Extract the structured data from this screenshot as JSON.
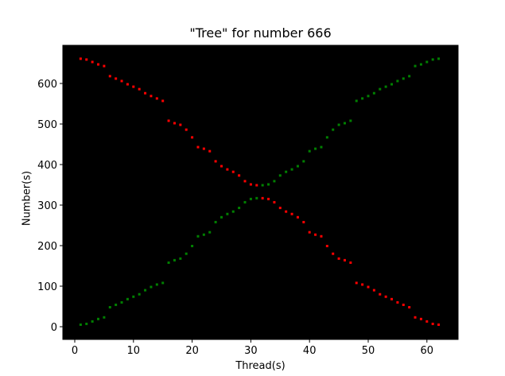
{
  "chart_data": {
    "type": "scatter",
    "title": "\"Tree\" for number 666",
    "xlabel": "Thread(s)",
    "ylabel": "Number(s)",
    "xlim": [
      -2,
      65
    ],
    "ylim": [
      -30,
      695
    ],
    "xticks": [
      0,
      10,
      20,
      30,
      40,
      50,
      60
    ],
    "yticks": [
      0,
      100,
      200,
      300,
      400,
      500,
      600
    ],
    "background": "#000000",
    "grid": false,
    "legend": null,
    "x": [
      1,
      2,
      3,
      4,
      5,
      6,
      7,
      8,
      9,
      10,
      11,
      12,
      13,
      14,
      15,
      16,
      17,
      18,
      19,
      20,
      21,
      22,
      23,
      24,
      25,
      26,
      27,
      28,
      29,
      30,
      31,
      32,
      33,
      34,
      35,
      36,
      37,
      38,
      39,
      40,
      41,
      42,
      43,
      44,
      45,
      46,
      47,
      48,
      49,
      50,
      51,
      52,
      53,
      54,
      55,
      56,
      57,
      58,
      59,
      60,
      61,
      62
    ],
    "series": [
      {
        "name": "red",
        "color": "#ff0000",
        "values": [
          661,
          659,
          653,
          647,
          643,
          618,
          612,
          606,
          598,
          592,
          586,
          576,
          569,
          563,
          557,
          508,
          502,
          498,
          486,
          467,
          443,
          439,
          433,
          408,
          396,
          388,
          382,
          373,
          359,
          351,
          349,
          317,
          315,
          307,
          293,
          284,
          278,
          270,
          258,
          233,
          227,
          223,
          199,
          180,
          168,
          164,
          158,
          108,
          104,
          98,
          90,
          80,
          74,
          68,
          60,
          54,
          48,
          23,
          19,
          13,
          7,
          5
        ]
      },
      {
        "name": "green",
        "color": "#008000",
        "values": [
          5,
          7,
          13,
          19,
          23,
          48,
          54,
          60,
          68,
          74,
          80,
          90,
          98,
          104,
          108,
          158,
          164,
          168,
          180,
          199,
          223,
          227,
          233,
          258,
          270,
          278,
          284,
          293,
          307,
          315,
          317,
          349,
          351,
          359,
          373,
          382,
          388,
          396,
          408,
          433,
          439,
          443,
          467,
          486,
          498,
          502,
          508,
          557,
          563,
          569,
          576,
          586,
          592,
          598,
          606,
          612,
          618,
          643,
          647,
          653,
          659,
          661
        ]
      }
    ]
  }
}
